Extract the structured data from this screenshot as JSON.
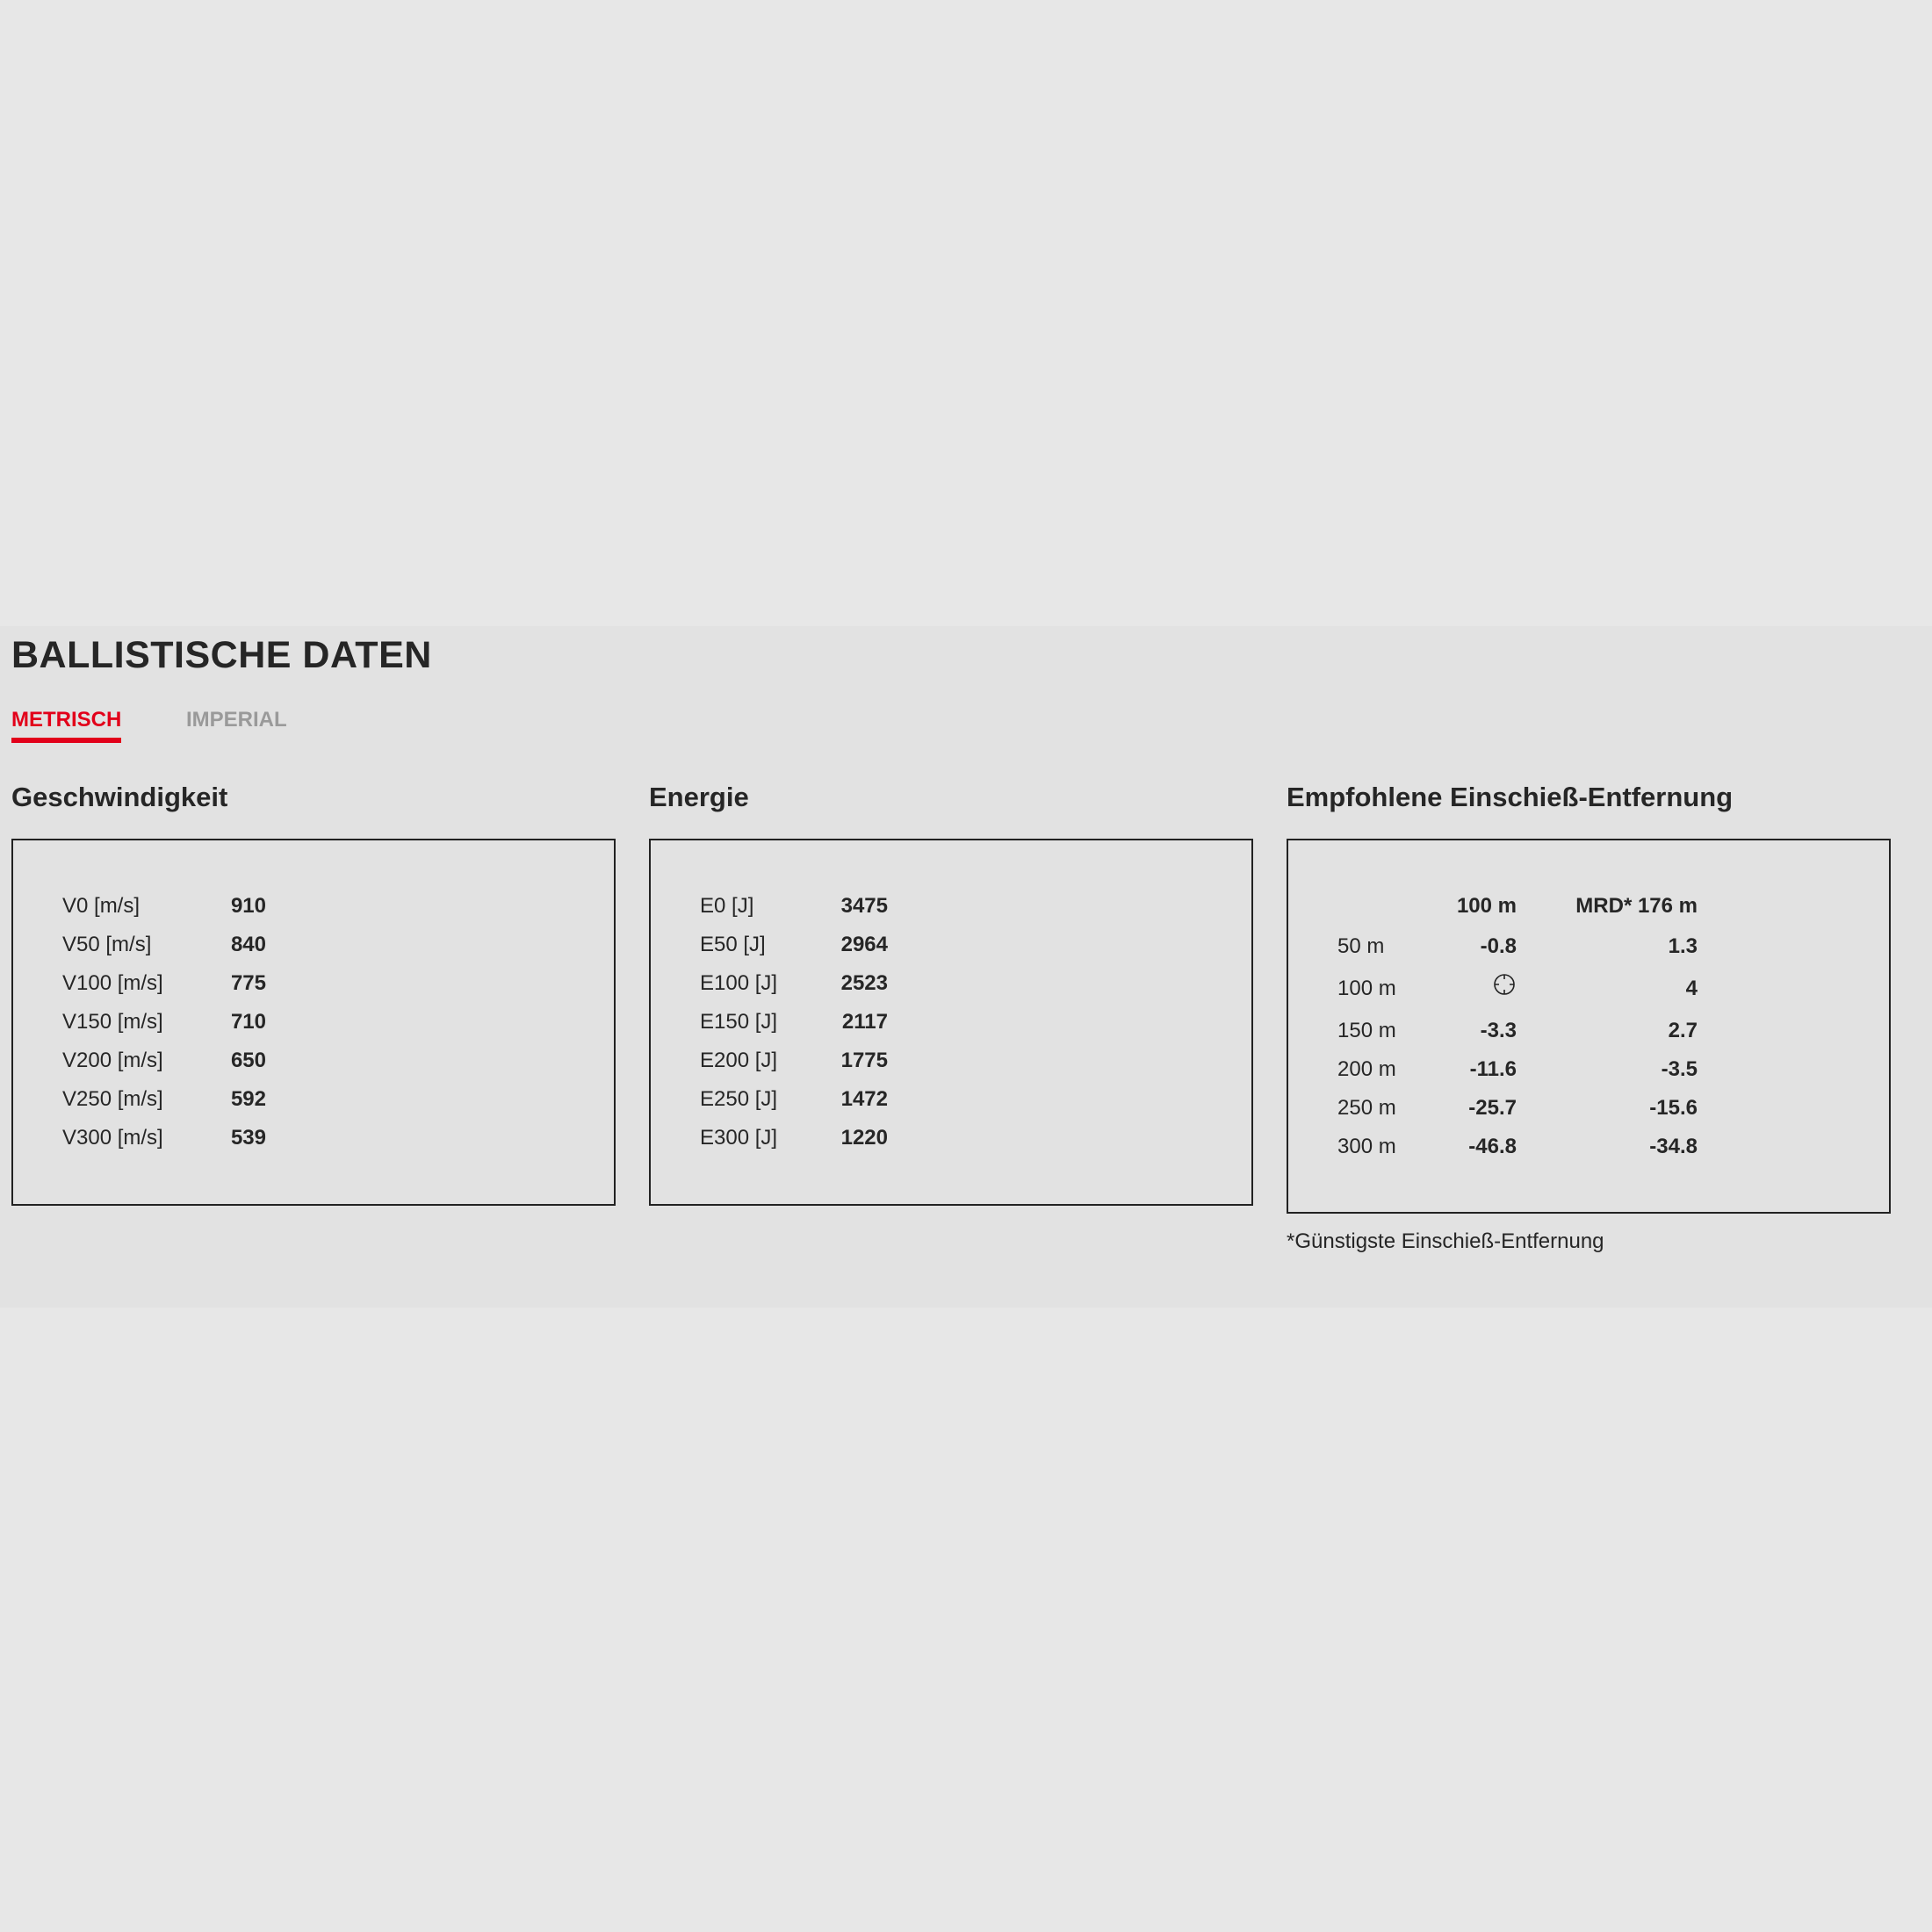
{
  "title": "BALLISTISCHE DATEN",
  "tabs": [
    {
      "label": "METRISCH",
      "active": true
    },
    {
      "label": "IMPERIAL",
      "active": false
    }
  ],
  "accent_color": "#e2001a",
  "velocity": {
    "heading": "Geschwindigkeit",
    "rows": [
      {
        "label": "V0 [m/s]",
        "value": "910"
      },
      {
        "label": "V50 [m/s]",
        "value": "840"
      },
      {
        "label": "V100 [m/s]",
        "value": "775"
      },
      {
        "label": "V150 [m/s]",
        "value": "710"
      },
      {
        "label": "V200 [m/s]",
        "value": "650"
      },
      {
        "label": "V250 [m/s]",
        "value": "592"
      },
      {
        "label": "V300 [m/s]",
        "value": "539"
      }
    ]
  },
  "energy": {
    "heading": "Energie",
    "rows": [
      {
        "label": "E0 [J]",
        "value": "3475"
      },
      {
        "label": "E50 [J]",
        "value": "2964"
      },
      {
        "label": "E100 [J]",
        "value": "2523"
      },
      {
        "label": "E150 [J]",
        "value": "2117"
      },
      {
        "label": "E200 [J]",
        "value": "1775"
      },
      {
        "label": "E250 [J]",
        "value": "1472"
      },
      {
        "label": "E300 [J]",
        "value": "1220"
      }
    ]
  },
  "zero": {
    "heading": "Empfohlene Einschieß-Entfernung",
    "columns": [
      "100 m",
      "MRD* 176 m"
    ],
    "rows": [
      {
        "label": "50 m",
        "c1": "-0.8",
        "c2": "1.3"
      },
      {
        "label": "100 m",
        "c1": null,
        "c1_icon": "crosshair-icon",
        "c2": "4"
      },
      {
        "label": "150 m",
        "c1": "-3.3",
        "c2": "2.7"
      },
      {
        "label": "200 m",
        "c1": "-11.6",
        "c2": "-3.5"
      },
      {
        "label": "250 m",
        "c1": "-25.7",
        "c2": "-15.6"
      },
      {
        "label": "300 m",
        "c1": "-46.8",
        "c2": "-34.8"
      }
    ],
    "footnote": "*Günstigste Einschieß-Entfernung"
  }
}
